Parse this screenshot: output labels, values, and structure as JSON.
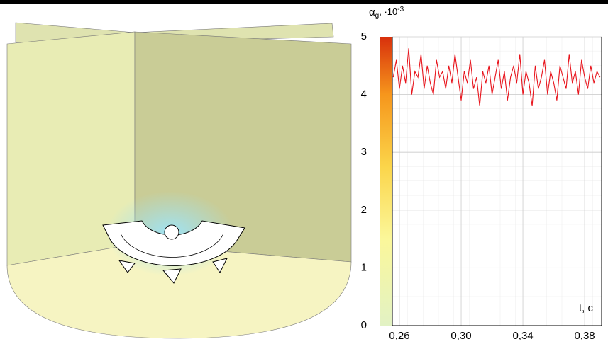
{
  "chart_data": {
    "type": "line",
    "y_label": {
      "symbol": "α",
      "subscript": "g",
      "unit": ", ·10",
      "exponent": "-3"
    },
    "x_label": "t, c",
    "x": [
      0.256,
      0.258,
      0.26,
      0.262,
      0.264,
      0.266,
      0.268,
      0.27,
      0.272,
      0.274,
      0.276,
      0.278,
      0.28,
      0.282,
      0.284,
      0.286,
      0.288,
      0.29,
      0.292,
      0.294,
      0.296,
      0.298,
      0.3,
      0.302,
      0.304,
      0.306,
      0.308,
      0.31,
      0.312,
      0.314,
      0.316,
      0.318,
      0.32,
      0.322,
      0.324,
      0.326,
      0.328,
      0.33,
      0.332,
      0.334,
      0.336,
      0.338,
      0.34,
      0.342,
      0.344,
      0.346,
      0.348,
      0.35,
      0.352,
      0.354,
      0.356,
      0.358,
      0.36,
      0.362,
      0.364,
      0.366,
      0.368,
      0.37,
      0.372,
      0.374,
      0.376,
      0.378,
      0.38,
      0.382,
      0.384,
      0.386,
      0.388,
      0.39
    ],
    "values": [
      4.3,
      4.6,
      4.1,
      4.5,
      4.2,
      4.8,
      4.0,
      4.4,
      4.3,
      4.7,
      4.1,
      4.5,
      4.2,
      4.0,
      4.6,
      4.3,
      4.4,
      4.1,
      4.5,
      4.2,
      4.7,
      4.3,
      3.9,
      4.4,
      4.2,
      4.6,
      4.1,
      4.3,
      3.8,
      4.4,
      4.2,
      4.5,
      4.0,
      4.3,
      4.6,
      4.1,
      4.4,
      3.9,
      4.3,
      4.5,
      4.2,
      4.7,
      4.0,
      4.4,
      4.2,
      3.8,
      4.5,
      4.1,
      4.3,
      4.6,
      4.0,
      4.4,
      4.2,
      3.9,
      4.5,
      4.3,
      4.1,
      4.7,
      4.2,
      4.4,
      4.0,
      4.6,
      4.3,
      4.1,
      4.5,
      4.2,
      4.4,
      4.3
    ],
    "color": "#e8141c",
    "xlim": [
      0.2554,
      0.391
    ],
    "ylim": [
      0,
      5
    ],
    "xticks": [
      {
        "value": 0.26,
        "label": "0,26"
      },
      {
        "value": 0.3,
        "label": "0,30"
      },
      {
        "value": 0.34,
        "label": "0,34"
      },
      {
        "value": 0.38,
        "label": "0,38"
      }
    ],
    "yticks": [
      0,
      1,
      2,
      3,
      4,
      5
    ],
    "grid": true
  }
}
